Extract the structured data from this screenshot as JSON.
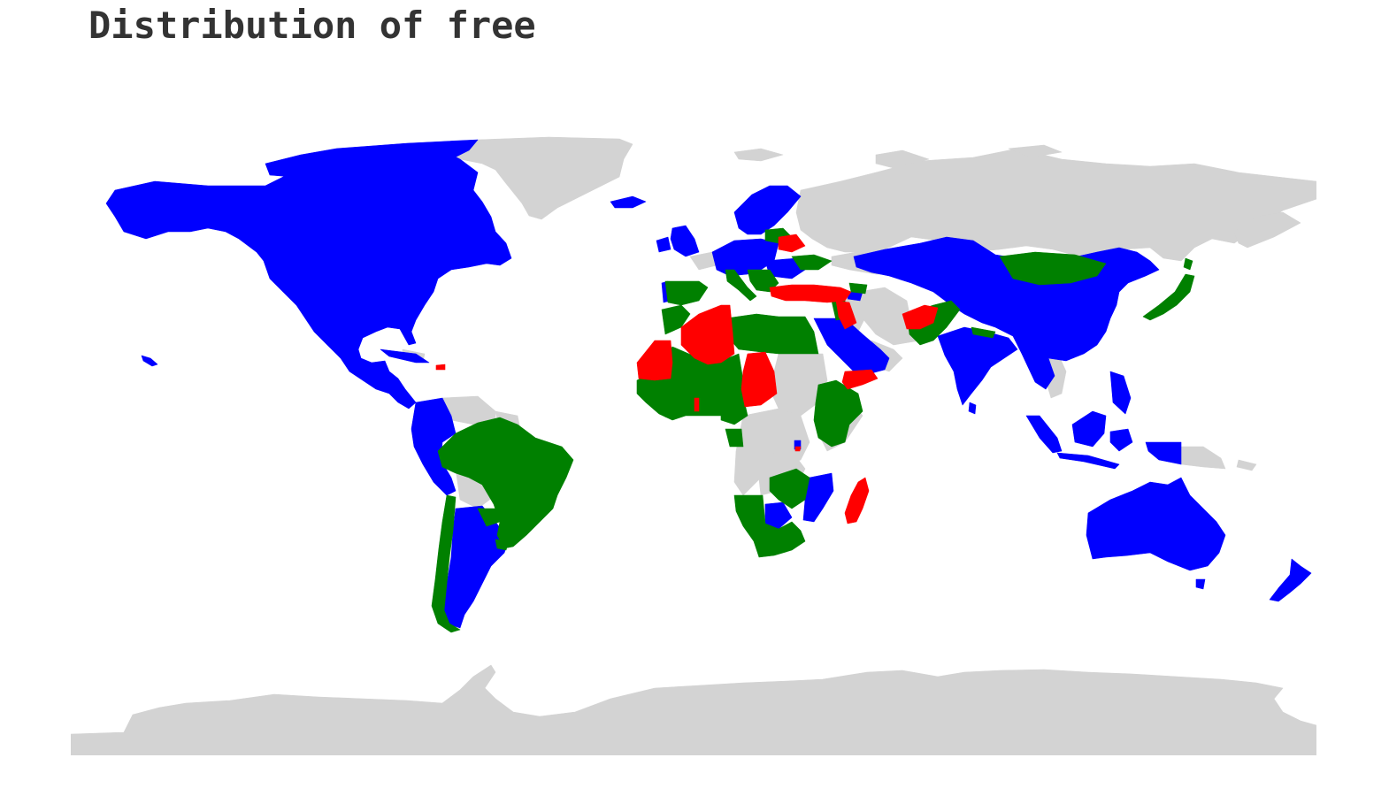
{
  "title": "Distribution of free",
  "colors": {
    "category_blue": "#0000ff",
    "category_green": "#008000",
    "category_red": "#ff0000",
    "no_data": "#d3d3d3",
    "background": "#ffffff"
  }
}
